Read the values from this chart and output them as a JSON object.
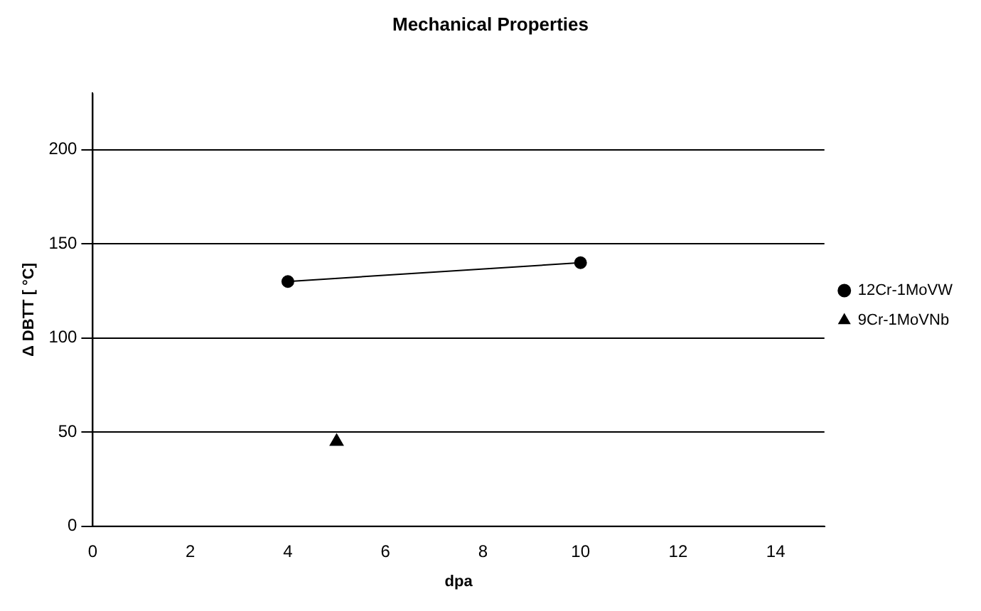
{
  "chart_data": {
    "type": "line",
    "title": "Mechanical Properties",
    "xlabel": "dpa",
    "ylabel": "Δ DBTT [ °C]",
    "xlim": [
      0,
      15
    ],
    "xticks": [
      0,
      2,
      4,
      6,
      8,
      10,
      12,
      14
    ],
    "ylim": [
      0,
      230
    ],
    "yticks": [
      0,
      50,
      100,
      150,
      200
    ],
    "grid": "y",
    "legend": "right",
    "series": [
      {
        "name": "12Cr-1MoVW",
        "color": "#000000",
        "marker": "circle",
        "x": [
          4,
          10
        ],
        "values": [
          130,
          140
        ]
      },
      {
        "name": "9Cr-1MoVNb",
        "type": "scatter",
        "color": "#000000",
        "marker": "triangle",
        "x": [
          5
        ],
        "values": [
          45
        ]
      }
    ]
  }
}
